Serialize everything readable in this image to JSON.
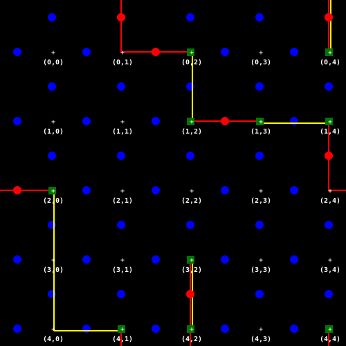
{
  "grid": {
    "rows": 5,
    "cols": 5,
    "cell_labels": [
      [
        "(0,0)",
        "(0,1)",
        "(0,2)",
        "(0,3)",
        "(0,4)"
      ],
      [
        "(1,0)",
        "(1,1)",
        "(1,2)",
        "(1,3)",
        "(1,4)"
      ],
      [
        "(2,0)",
        "(2,1)",
        "(2,2)",
        "(2,3)",
        "(2,4)"
      ],
      [
        "(3,0)",
        "(3,1)",
        "(3,2)",
        "(3,3)",
        "(3,4)"
      ],
      [
        "(4,0)",
        "(4,1)",
        "(4,2)",
        "(4,3)",
        "(4,4)"
      ]
    ],
    "center_marker": "+"
  },
  "colors": {
    "background": "#000000",
    "blue_dot": "#0000ff",
    "red_dot": "#ff0000",
    "green_square": "#007700",
    "red_path": "#ff0000",
    "yellow_path": "#ffff00",
    "label": "#ffffff"
  },
  "pieces": {
    "green_squares": [
      [
        0,
        2
      ],
      [
        0,
        4
      ],
      [
        1,
        2
      ],
      [
        1,
        3
      ],
      [
        1,
        4
      ],
      [
        2,
        0
      ],
      [
        3,
        2
      ],
      [
        4,
        1
      ],
      [
        4,
        2
      ],
      [
        4,
        4
      ]
    ],
    "yellow_segments": [
      [
        [
          0,
          2
        ],
        [
          1,
          2
        ]
      ],
      [
        [
          1,
          3
        ],
        [
          1,
          4
        ]
      ],
      [
        [
          2,
          0
        ],
        [
          4,
          0
        ]
      ],
      [
        [
          4,
          0
        ],
        [
          4,
          1
        ]
      ],
      [
        [
          3,
          2
        ],
        [
          4,
          2
        ]
      ],
      [
        [
          0,
          4
        ],
        [
          -1,
          4
        ]
      ]
    ],
    "red_paths": [
      [
        [
          -1,
          1
        ],
        [
          -0.5,
          1
        ],
        [
          0,
          1
        ],
        [
          0,
          1.5
        ],
        [
          0,
          2
        ]
      ],
      [
        [
          1,
          2
        ],
        [
          1,
          2.5
        ],
        [
          1,
          3
        ]
      ],
      [
        [
          2,
          -1
        ],
        [
          2,
          -0.5
        ],
        [
          2,
          0
        ]
      ],
      [
        [
          1,
          4
        ],
        [
          1.5,
          4
        ],
        [
          2,
          4
        ],
        [
          2,
          4.5
        ]
      ],
      [
        [
          3,
          2
        ],
        [
          3.5,
          2
        ],
        [
          4,
          2
        ],
        [
          4.5,
          2
        ]
      ],
      [
        [
          4,
          1
        ],
        [
          4.5,
          1
        ]
      ],
      [
        [
          4,
          4
        ],
        [
          4.5,
          4
        ]
      ],
      [
        [
          0,
          4
        ],
        [
          -0.5,
          4
        ],
        [
          -1,
          4
        ]
      ]
    ],
    "red_dots": [
      [
        -0.5,
        1
      ],
      [
        0,
        1.5
      ],
      [
        1,
        2.5
      ],
      [
        2,
        -0.5
      ],
      [
        1.5,
        4
      ],
      [
        3.5,
        2
      ],
      [
        -0.5,
        4
      ]
    ]
  }
}
